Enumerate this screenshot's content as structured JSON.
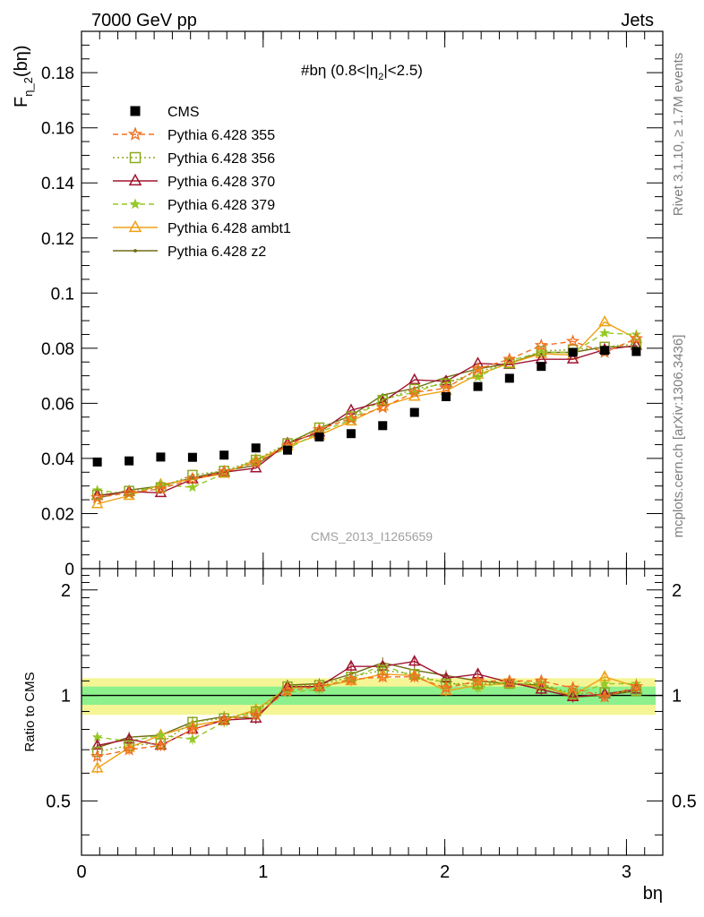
{
  "header": {
    "left": "7000 GeV pp",
    "right": "Jets"
  },
  "side_labels": {
    "rivet": "Rivet 3.1.10, ≥ 1.7M events",
    "mcplots": "mcplots.cern.ch [arXiv:1306.3436]"
  },
  "colors": {
    "cms": "#000000",
    "p355": "#f07020",
    "p356": "#8caa1e",
    "p370": "#a01430",
    "p379": "#96c828",
    "ambt1": "#f0a014",
    "z2": "#6e6e14",
    "band_outer": "#f5f596",
    "band_inner": "#8cf08c"
  },
  "chart_data": [
    {
      "panel": "main",
      "type": "scatter",
      "title": "#bη (0.8<|η",
      "title_sub": "2",
      "title_end": "|<2.5)",
      "ylabel_main": "F",
      "ylabel_sub": "η_2",
      "ylabel_end": "(bη)",
      "xlim": [
        0,
        3.2
      ],
      "ylim": [
        0,
        0.195
      ],
      "yticks": [
        "0",
        "0.02",
        "0.04",
        "0.06",
        "0.08",
        "0.1",
        "0.12",
        "0.14",
        "0.16",
        "0.18"
      ],
      "ytick_values": [
        0,
        0.02,
        0.04,
        0.06,
        0.08,
        0.1,
        0.12,
        0.14,
        0.16,
        0.18
      ],
      "watermark": "CMS_2013_I1265659",
      "legend_position": "top-left",
      "x": [
        0.087,
        0.262,
        0.436,
        0.611,
        0.785,
        0.96,
        1.134,
        1.309,
        1.484,
        1.658,
        1.833,
        2.007,
        2.182,
        2.356,
        2.531,
        2.705,
        2.88,
        3.054
      ],
      "series": [
        {
          "name": "CMS",
          "key": "cms",
          "marker": "square",
          "dash": "",
          "values": [
            0.0387,
            0.0391,
            0.0405,
            0.0404,
            0.0412,
            0.0438,
            0.043,
            0.0478,
            0.049,
            0.0519,
            0.0567,
            0.0624,
            0.0661,
            0.0691,
            0.0734,
            0.0785,
            0.0792,
            0.0788
          ]
        },
        {
          "name": "Pythia 6.428 355",
          "key": "p355",
          "marker": "star-open",
          "dash": "6,4",
          "values": [
            0.0258,
            0.0275,
            0.029,
            0.0325,
            0.0352,
            0.0385,
            0.0445,
            0.0505,
            0.0545,
            0.0585,
            0.064,
            0.0655,
            0.0725,
            0.076,
            0.081,
            0.0825,
            0.0785,
            0.0835
          ]
        },
        {
          "name": "Pythia 6.428 356",
          "key": "p356",
          "marker": "square-open",
          "dash": "2,3",
          "values": [
            0.0268,
            0.0282,
            0.0295,
            0.034,
            0.0355,
            0.0395,
            0.0455,
            0.0512,
            0.0552,
            0.0612,
            0.0652,
            0.0672,
            0.0715,
            0.0745,
            0.079,
            0.0795,
            0.0805,
            0.0815
          ]
        },
        {
          "name": "Pythia 6.428 370",
          "key": "p370",
          "marker": "triangle-open",
          "dash": "",
          "values": [
            0.0265,
            0.028,
            0.0275,
            0.0325,
            0.035,
            0.0365,
            0.0455,
            0.0495,
            0.0575,
            0.0605,
            0.0685,
            0.068,
            0.0745,
            0.074,
            0.076,
            0.076,
            0.0795,
            0.081
          ]
        },
        {
          "name": "Pythia 6.428 379",
          "key": "p379",
          "marker": "star",
          "dash": "6,4",
          "values": [
            0.0285,
            0.027,
            0.0305,
            0.0295,
            0.0345,
            0.0395,
            0.0435,
            0.0495,
            0.054,
            0.0615,
            0.064,
            0.068,
            0.0695,
            0.0755,
            0.0785,
            0.0785,
            0.0855,
            0.085
          ]
        },
        {
          "name": "Pythia 6.428 ambt1",
          "key": "ambt1",
          "marker": "triangle-open",
          "dash": "",
          "values": [
            0.0235,
            0.0265,
            0.0305,
            0.0325,
            0.0345,
            0.0395,
            0.0445,
            0.0485,
            0.0535,
            0.059,
            0.0625,
            0.0645,
            0.0705,
            0.0745,
            0.078,
            0.0775,
            0.0895,
            0.0835
          ]
        },
        {
          "name": "Pythia 6.428 z2",
          "key": "z2",
          "marker": "dot",
          "dash": "",
          "values": [
            0.0255,
            0.0285,
            0.03,
            0.033,
            0.0355,
            0.0375,
            0.0455,
            0.051,
            0.0555,
            0.063,
            0.0655,
            0.0695,
            0.0725,
            0.0745,
            0.0785,
            0.0785,
            0.0805,
            0.0805
          ]
        }
      ]
    },
    {
      "panel": "ratio",
      "type": "line",
      "ylabel": "Ratio to CMS",
      "xlabel": "bη",
      "xlim": [
        0,
        3.2
      ],
      "ylim": [
        0.35,
        2.3
      ],
      "xticks": [
        "0",
        "1",
        "2",
        "3"
      ],
      "xtick_values": [
        0,
        1,
        2,
        3
      ],
      "yticks": [
        "0.5",
        "1",
        "2"
      ],
      "ytick_values": [
        0.5,
        1,
        2
      ],
      "band_outer": [
        0.88,
        1.12
      ],
      "band_inner": [
        0.94,
        1.06
      ],
      "x": [
        0.087,
        0.262,
        0.436,
        0.611,
        0.785,
        0.96,
        1.134,
        1.309,
        1.484,
        1.658,
        1.833,
        2.007,
        2.182,
        2.356,
        2.531,
        2.705,
        2.88,
        3.054
      ],
      "series": [
        {
          "name": "Pythia 6.428 355",
          "key": "p355",
          "marker": "star-open",
          "dash": "6,4",
          "values": [
            0.67,
            0.7,
            0.72,
            0.8,
            0.85,
            0.88,
            1.03,
            1.06,
            1.11,
            1.13,
            1.13,
            1.05,
            1.1,
            1.1,
            1.1,
            1.05,
            0.99,
            1.06
          ]
        },
        {
          "name": "Pythia 6.428 356",
          "key": "p356",
          "marker": "square-open",
          "dash": "2,3",
          "values": [
            0.69,
            0.72,
            0.73,
            0.84,
            0.86,
            0.9,
            1.06,
            1.07,
            1.13,
            1.18,
            1.15,
            1.08,
            1.08,
            1.08,
            1.08,
            1.01,
            1.02,
            1.03
          ]
        },
        {
          "name": "Pythia 6.428 370",
          "key": "p370",
          "marker": "triangle-open",
          "dash": "",
          "values": [
            0.72,
            0.75,
            0.72,
            0.8,
            0.85,
            0.86,
            1.06,
            1.06,
            1.21,
            1.21,
            1.25,
            1.12,
            1.15,
            1.09,
            1.04,
            0.99,
            1.01,
            1.04
          ]
        },
        {
          "name": "Pythia 6.428 379",
          "key": "p379",
          "marker": "star",
          "dash": "6,4",
          "values": [
            0.76,
            0.74,
            0.77,
            0.75,
            0.84,
            0.9,
            1.02,
            1.04,
            1.12,
            1.22,
            1.13,
            1.09,
            1.05,
            1.1,
            1.08,
            1.0,
            1.08,
            1.08
          ]
        },
        {
          "name": "Pythia 6.428 ambt1",
          "key": "ambt1",
          "marker": "triangle-open",
          "dash": "",
          "values": [
            0.62,
            0.71,
            0.77,
            0.82,
            0.85,
            0.91,
            1.05,
            1.06,
            1.1,
            1.15,
            1.14,
            1.03,
            1.07,
            1.08,
            1.06,
            1.0,
            1.13,
            1.06
          ]
        },
        {
          "name": "Pythia 6.428 z2",
          "key": "z2",
          "marker": "dot",
          "dash": "",
          "values": [
            0.71,
            0.76,
            0.77,
            0.84,
            0.87,
            0.86,
            1.07,
            1.08,
            1.15,
            1.24,
            1.18,
            1.14,
            1.1,
            1.08,
            1.07,
            0.99,
            1.0,
            1.03
          ]
        }
      ]
    }
  ]
}
